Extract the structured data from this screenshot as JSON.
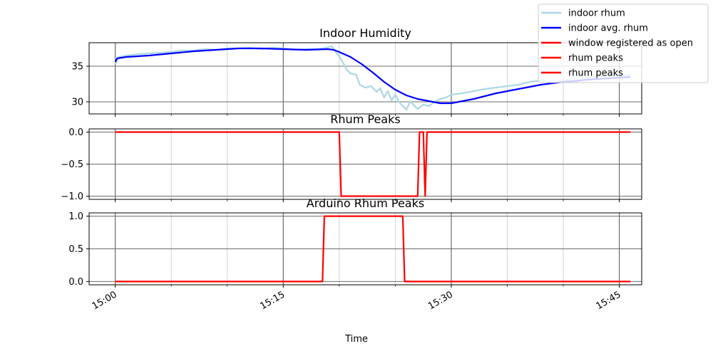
{
  "chart_data": [
    {
      "type": "line",
      "title": "Indoor Humidity",
      "ylim": [
        28.3,
        38.3
      ],
      "yticks": [
        30,
        35
      ],
      "grid": true,
      "series": [
        {
          "name": "indoor rhum",
          "color": "#add8e6",
          "points": [
            [
              "15:00",
              35.3
            ],
            [
              "15:00:20",
              36.3
            ],
            [
              "15:01",
              36.5
            ],
            [
              "15:02",
              36.7
            ],
            [
              "15:03",
              36.8
            ],
            [
              "15:04",
              36.9
            ],
            [
              "15:05",
              37.0
            ],
            [
              "15:06",
              37.2
            ],
            [
              "15:07",
              37.2
            ],
            [
              "15:08",
              37.4
            ],
            [
              "15:09",
              37.3
            ],
            [
              "15:10",
              37.5
            ],
            [
              "15:11",
              37.5
            ],
            [
              "15:12",
              37.6
            ],
            [
              "15:13",
              37.4
            ],
            [
              "15:14",
              37.6
            ],
            [
              "15:15",
              37.5
            ],
            [
              "15:16",
              37.3
            ],
            [
              "15:17",
              37.4
            ],
            [
              "15:18",
              37.4
            ],
            [
              "15:18:50",
              37.6
            ],
            [
              "15:19:20",
              37.8
            ],
            [
              "15:19:40",
              37.0
            ],
            [
              "15:20",
              36.4
            ],
            [
              "15:20:20",
              35.5
            ],
            [
              "15:20:40",
              34.5
            ],
            [
              "15:21",
              34.0
            ],
            [
              "15:21:30",
              33.8
            ],
            [
              "15:21:50",
              32.4
            ],
            [
              "15:22:20",
              32.0
            ],
            [
              "15:22:50",
              32.2
            ],
            [
              "15:23:20",
              31.4
            ],
            [
              "15:23:40",
              31.9
            ],
            [
              "15:24",
              30.6
            ],
            [
              "15:24:20",
              31.5
            ],
            [
              "15:24:40",
              30.2
            ],
            [
              "15:25",
              31.0
            ],
            [
              "15:25:20",
              30.0
            ],
            [
              "15:25:40",
              29.4
            ],
            [
              "15:26",
              28.9
            ],
            [
              "15:26:20",
              30.1
            ],
            [
              "15:26:40",
              29.5
            ],
            [
              "15:27",
              29.0
            ],
            [
              "15:27:30",
              29.6
            ],
            [
              "15:28",
              29.4
            ],
            [
              "15:28:30",
              30.0
            ],
            [
              "15:29",
              30.4
            ],
            [
              "15:29:30",
              30.6
            ],
            [
              "15:30",
              31.0
            ],
            [
              "15:31",
              31.2
            ],
            [
              "15:32",
              31.5
            ],
            [
              "15:33",
              31.8
            ],
            [
              "15:34",
              32.0
            ],
            [
              "15:35",
              32.2
            ],
            [
              "15:36",
              32.4
            ],
            [
              "15:37",
              32.8
            ],
            [
              "15:38",
              33.0
            ],
            [
              "15:39",
              32.9
            ],
            [
              "15:40",
              33.0
            ],
            [
              "15:41",
              33.2
            ],
            [
              "15:42",
              33.4
            ],
            [
              "15:43",
              33.5
            ],
            [
              "15:44",
              33.6
            ],
            [
              "15:45",
              33.7
            ],
            [
              "15:46",
              33.8
            ]
          ]
        },
        {
          "name": "indoor avg. rhum",
          "color": "#0000ff",
          "points": [
            [
              "15:00",
              35.6
            ],
            [
              "15:00:10",
              36.1
            ],
            [
              "15:01",
              36.3
            ],
            [
              "15:03",
              36.5
            ],
            [
              "15:05",
              36.8
            ],
            [
              "15:07",
              37.1
            ],
            [
              "15:09",
              37.3
            ],
            [
              "15:11",
              37.5
            ],
            [
              "15:13",
              37.5
            ],
            [
              "15:15",
              37.4
            ],
            [
              "15:17",
              37.3
            ],
            [
              "15:19",
              37.4
            ],
            [
              "15:19:30",
              37.3
            ],
            [
              "15:20",
              37.0
            ],
            [
              "15:21",
              36.3
            ],
            [
              "15:22",
              35.3
            ],
            [
              "15:23",
              34.1
            ],
            [
              "15:24",
              32.8
            ],
            [
              "15:25",
              31.7
            ],
            [
              "15:26",
              30.9
            ],
            [
              "15:27",
              30.4
            ],
            [
              "15:28",
              30.1
            ],
            [
              "15:29",
              29.8
            ],
            [
              "15:30",
              29.8
            ],
            [
              "15:31",
              30.1
            ],
            [
              "15:32",
              30.4
            ],
            [
              "15:33",
              30.8
            ],
            [
              "15:34",
              31.2
            ],
            [
              "15:35",
              31.5
            ],
            [
              "15:36",
              31.8
            ],
            [
              "15:37",
              32.1
            ],
            [
              "15:38",
              32.4
            ],
            [
              "15:39",
              32.6
            ],
            [
              "15:40",
              32.8
            ],
            [
              "15:41",
              32.9
            ],
            [
              "15:42",
              33.1
            ],
            [
              "15:43",
              33.2
            ],
            [
              "15:44",
              33.3
            ],
            [
              "15:45",
              33.4
            ],
            [
              "15:46",
              33.5
            ]
          ]
        }
      ]
    },
    {
      "type": "line",
      "title": "Rhum Peaks",
      "ylim": [
        -1.05,
        0.05
      ],
      "yticks": [
        -1.0,
        -0.5,
        0.0
      ],
      "grid": true,
      "series": [
        {
          "name": "rhum peaks",
          "color": "#ff0000",
          "points": [
            [
              "15:00",
              0
            ],
            [
              "15:20",
              0
            ],
            [
              "15:20:10",
              -1
            ],
            [
              "15:27",
              -1
            ],
            [
              "15:27:10",
              0
            ],
            [
              "15:27:30",
              0
            ],
            [
              "15:27:40",
              -1
            ],
            [
              "15:27:50",
              0
            ],
            [
              "15:46",
              0
            ]
          ]
        }
      ]
    },
    {
      "type": "line",
      "title": "Arduino Rhum Peaks",
      "ylim": [
        -0.05,
        1.05
      ],
      "yticks": [
        0.0,
        0.5,
        1.0
      ],
      "grid": true,
      "series": [
        {
          "name": "rhum peaks",
          "color": "#ff0000",
          "points": [
            [
              "15:00",
              0
            ],
            [
              "15:18:30",
              0
            ],
            [
              "15:18:40",
              1
            ],
            [
              "15:25:40",
              1
            ],
            [
              "15:25:50",
              0
            ],
            [
              "15:46",
              0
            ]
          ]
        }
      ]
    }
  ],
  "xaxis": {
    "label": "Time",
    "range": [
      "14:57:40",
      "15:47:00"
    ],
    "major_ticks": [
      "15:00",
      "15:15",
      "15:30",
      "15:45"
    ],
    "minor_ticks": [
      "15:05",
      "15:10",
      "15:20",
      "15:25",
      "15:35",
      "15:40"
    ]
  },
  "legend": {
    "location": "top-right",
    "entries": [
      {
        "label": "indoor rhum",
        "color": "#add8e6"
      },
      {
        "label": "indoor avg. rhum",
        "color": "#0000ff"
      },
      {
        "label": "window registered as open",
        "color": "#ff0000"
      },
      {
        "label": "rhum peaks",
        "color": "#ff0000"
      },
      {
        "label": "rhum peaks",
        "color": "#ff0000"
      }
    ]
  }
}
